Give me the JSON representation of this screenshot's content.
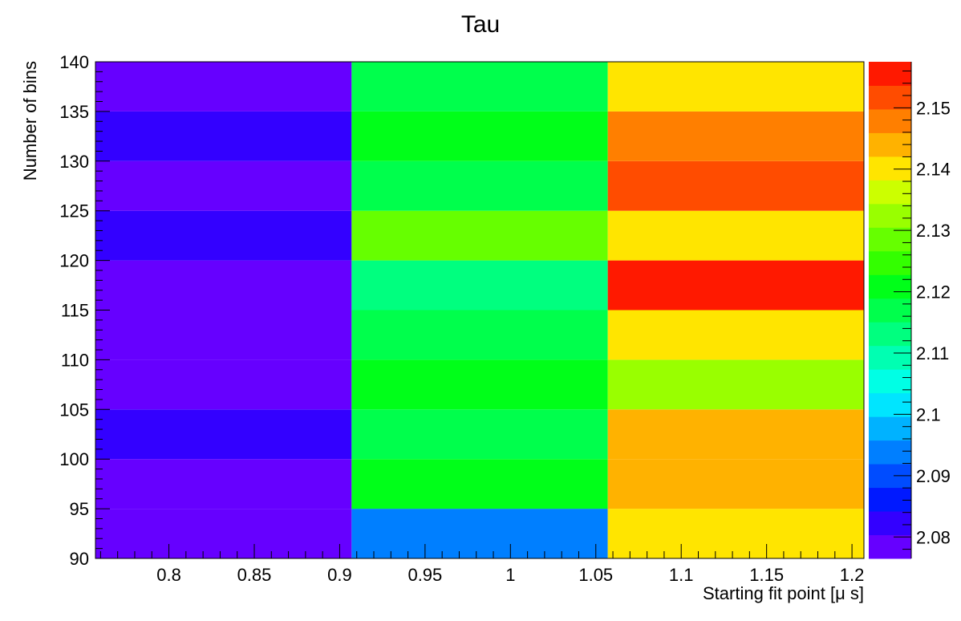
{
  "chart_data": {
    "type": "heatmap",
    "title": "Tau",
    "xlabel": "Starting fit point [μ s]",
    "ylabel": "Number of bins",
    "xlim": [
      0.757,
      1.207
    ],
    "ylim": [
      90,
      140
    ],
    "x_bin_edges": [
      0.757,
      0.907,
      1.057,
      1.207
    ],
    "y_bin_edges": [
      90,
      95,
      100,
      105,
      110,
      115,
      120,
      125,
      130,
      135,
      140
    ],
    "x_ticks": [
      0.8,
      0.85,
      0.9,
      0.95,
      1,
      1.05,
      1.1,
      1.15,
      1.2
    ],
    "x_tick_labels": [
      "0.8",
      "0.85",
      "0.9",
      "0.95",
      "1",
      "1.05",
      "1.1",
      "1.15",
      "1.2"
    ],
    "y_ticks": [
      90,
      95,
      100,
      105,
      110,
      115,
      120,
      125,
      130,
      135,
      140
    ],
    "y_tick_labels": [
      "90",
      "95",
      "100",
      "105",
      "110",
      "115",
      "120",
      "125",
      "130",
      "135",
      "140"
    ],
    "z_range": [
      2.0765,
      2.1575
    ],
    "z_ticks": [
      2.08,
      2.09,
      2.1,
      2.11,
      2.12,
      2.13,
      2.14,
      2.15
    ],
    "z_tick_labels": [
      "2.08",
      "2.09",
      "2.1",
      "2.11",
      "2.12",
      "2.13",
      "2.14",
      "2.15"
    ],
    "palette": [
      "#6600ff",
      "#3300ff",
      "#0019ff",
      "#004cff",
      "#007fff",
      "#00b2ff",
      "#00e5ff",
      "#00ffe5",
      "#00ffb2",
      "#00ff7f",
      "#00ff4c",
      "#00ff19",
      "#33ff00",
      "#66ff00",
      "#99ff00",
      "#ccff00",
      "#ffe500",
      "#ffb200",
      "#ff7f00",
      "#ff4c00",
      "#ff1900"
    ],
    "z_values": [
      [
        2.08,
        2.093,
        2.14
      ],
      [
        2.077,
        2.122,
        2.145
      ],
      [
        2.081,
        2.117,
        2.145
      ],
      [
        2.077,
        2.12,
        2.132
      ],
      [
        2.077,
        2.116,
        2.142
      ],
      [
        2.077,
        2.112,
        2.156
      ],
      [
        2.081,
        2.13,
        2.142
      ],
      [
        2.077,
        2.117,
        2.151
      ],
      [
        2.081,
        2.12,
        2.146
      ],
      [
        2.08,
        2.117,
        2.142
      ]
    ],
    "grid": false,
    "colorbar": "right"
  }
}
